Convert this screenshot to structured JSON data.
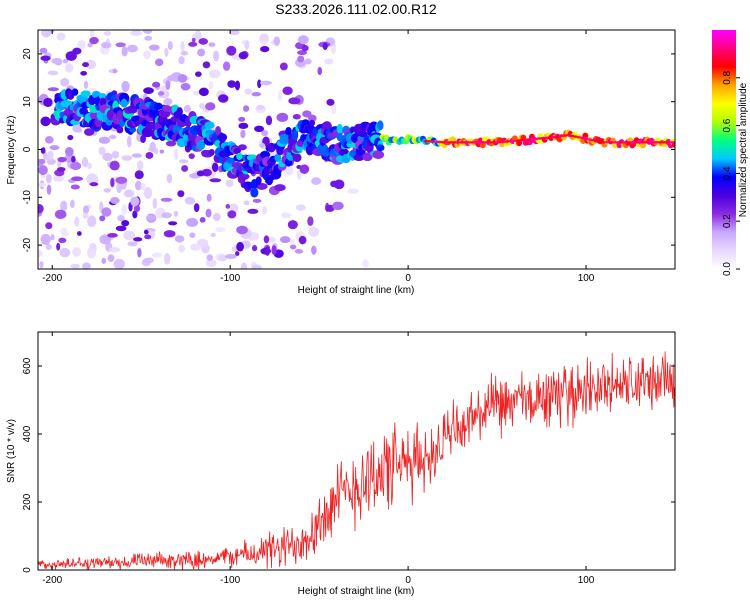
{
  "title": "S233.2026.111.02.00.R12",
  "chart_data": [
    {
      "type": "heatmap",
      "name": "spectrogram",
      "xlabel": "Height of straight line (km)",
      "ylabel": "Frequency (Hz)",
      "xlim": [
        -208,
        150
      ],
      "ylim": [
        -25,
        25
      ],
      "xticks": [
        -200,
        -100,
        0,
        100
      ],
      "yticks": [
        -20,
        -10,
        0,
        10,
        20
      ],
      "colorbar": {
        "label": "Normalized spectral amplitude",
        "range": [
          0,
          1
        ],
        "ticks": [
          0.0,
          0.2,
          0.4,
          0.6,
          0.8
        ],
        "tick_labels": [
          "0.0",
          "0.2",
          "0.4",
          "0.6",
          "0.8"
        ],
        "colormap": [
          "#ffffff",
          "#e8d8ff",
          "#c8a8ff",
          "#8a2be2",
          "#4b00e0",
          "#0000ff",
          "#00c8ff",
          "#00ff80",
          "#b0ff00",
          "#ffff00",
          "#ffa500",
          "#ff0000",
          "#ff0080",
          "#ff00ff"
        ]
      },
      "ridge": [
        {
          "x": -190,
          "freq": 9
        },
        {
          "x": -170,
          "freq": 8
        },
        {
          "x": -150,
          "freq": 7
        },
        {
          "x": -130,
          "freq": 5
        },
        {
          "x": -110,
          "freq": 2
        },
        {
          "x": -95,
          "freq": -3
        },
        {
          "x": -85,
          "freq": -6
        },
        {
          "x": -70,
          "freq": 0
        },
        {
          "x": -55,
          "freq": 3
        },
        {
          "x": -40,
          "freq": 1
        },
        {
          "x": -20,
          "freq": 2
        },
        {
          "x": 0,
          "freq": 2
        },
        {
          "x": 20,
          "freq": 1.5
        },
        {
          "x": 50,
          "freq": 1.5
        },
        {
          "x": 80,
          "freq": 2.5
        },
        {
          "x": 90,
          "freq": 3
        },
        {
          "x": 110,
          "freq": 1.5
        },
        {
          "x": 150,
          "freq": 1.5
        }
      ]
    },
    {
      "type": "line",
      "name": "snr",
      "xlabel": "Height of straight line (km)",
      "ylabel": "SNR (10 * v/v)",
      "xlim": [
        -208,
        150
      ],
      "ylim": [
        0,
        700
      ],
      "xticks": [
        -200,
        -100,
        0,
        100
      ],
      "yticks": [
        0,
        200,
        400,
        600
      ],
      "color": "#ee2222",
      "series": [
        {
          "x": -208,
          "y": 15
        },
        {
          "x": -180,
          "y": 20
        },
        {
          "x": -150,
          "y": 25
        },
        {
          "x": -120,
          "y": 30
        },
        {
          "x": -100,
          "y": 40
        },
        {
          "x": -80,
          "y": 55
        },
        {
          "x": -70,
          "y": 60
        },
        {
          "x": -60,
          "y": 90
        },
        {
          "x": -50,
          "y": 140
        },
        {
          "x": -40,
          "y": 200
        },
        {
          "x": -30,
          "y": 250
        },
        {
          "x": -20,
          "y": 280
        },
        {
          "x": -10,
          "y": 300
        },
        {
          "x": 0,
          "y": 310
        },
        {
          "x": 10,
          "y": 330
        },
        {
          "x": 20,
          "y": 380
        },
        {
          "x": 30,
          "y": 420
        },
        {
          "x": 40,
          "y": 460
        },
        {
          "x": 50,
          "y": 480
        },
        {
          "x": 70,
          "y": 500
        },
        {
          "x": 90,
          "y": 520
        },
        {
          "x": 110,
          "y": 540
        },
        {
          "x": 130,
          "y": 550
        },
        {
          "x": 150,
          "y": 560
        }
      ],
      "noise": [
        {
          "x": -208,
          "amp": 15
        },
        {
          "x": -100,
          "amp": 30
        },
        {
          "x": -60,
          "amp": 80
        },
        {
          "x": -20,
          "amp": 140
        },
        {
          "x": 20,
          "amp": 90
        },
        {
          "x": 150,
          "amp": 90
        }
      ]
    }
  ]
}
